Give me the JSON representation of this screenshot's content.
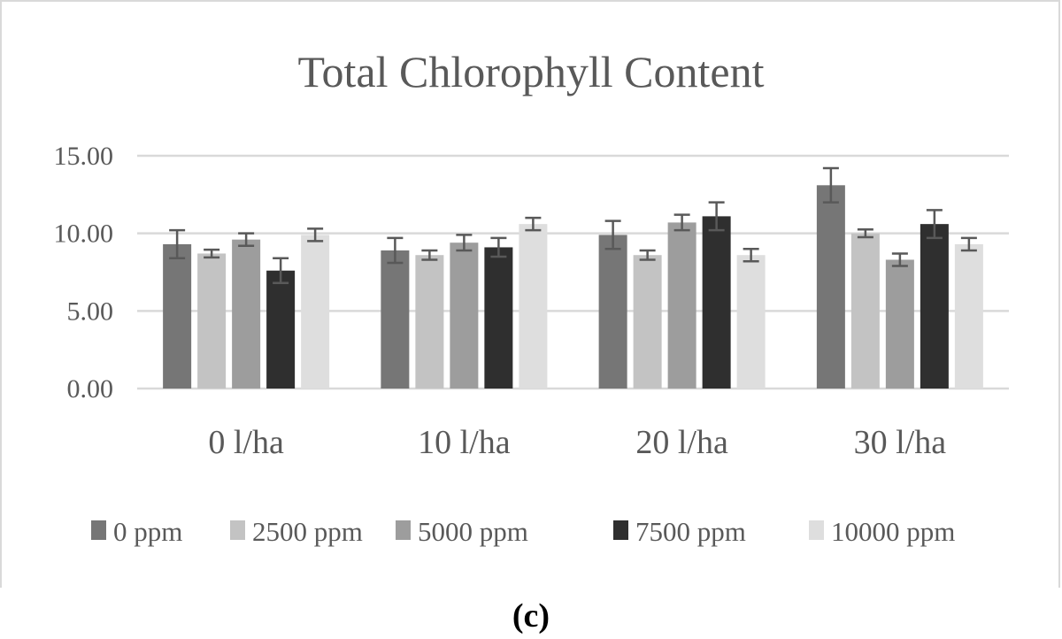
{
  "chart_data": {
    "type": "bar",
    "title": "Total Chlorophyll Content",
    "categories": [
      "0 l/ha",
      "10 l/ha",
      "20 l/ha",
      "30 l/ha"
    ],
    "ylim": [
      0,
      15
    ],
    "yticks": [
      0,
      5,
      10,
      15
    ],
    "ytick_labels": [
      "0.00",
      "5.00",
      "10.00",
      "15.00"
    ],
    "grid": true,
    "legend_position": "bottom",
    "series": [
      {
        "name": "0 ppm",
        "color": "#767676",
        "values": [
          9.3,
          8.9,
          9.9,
          13.1
        ],
        "errors": [
          0.9,
          0.8,
          0.9,
          1.1
        ]
      },
      {
        "name": "2500 ppm",
        "color": "#c3c3c3",
        "values": [
          8.7,
          8.6,
          8.6,
          10.0
        ],
        "errors": [
          0.25,
          0.3,
          0.3,
          0.25
        ]
      },
      {
        "name": "5000 ppm",
        "color": "#9d9d9d",
        "values": [
          9.6,
          9.4,
          10.7,
          8.3
        ],
        "errors": [
          0.4,
          0.5,
          0.5,
          0.4
        ]
      },
      {
        "name": "7500 ppm",
        "color": "#2f2f2f",
        "values": [
          7.6,
          9.1,
          11.1,
          10.6
        ],
        "errors": [
          0.8,
          0.6,
          0.9,
          0.9
        ]
      },
      {
        "name": "10000 ppm",
        "color": "#dedede",
        "values": [
          9.9,
          10.6,
          8.6,
          9.3
        ],
        "errors": [
          0.4,
          0.4,
          0.4,
          0.4
        ]
      }
    ]
  },
  "caption": "(c)"
}
